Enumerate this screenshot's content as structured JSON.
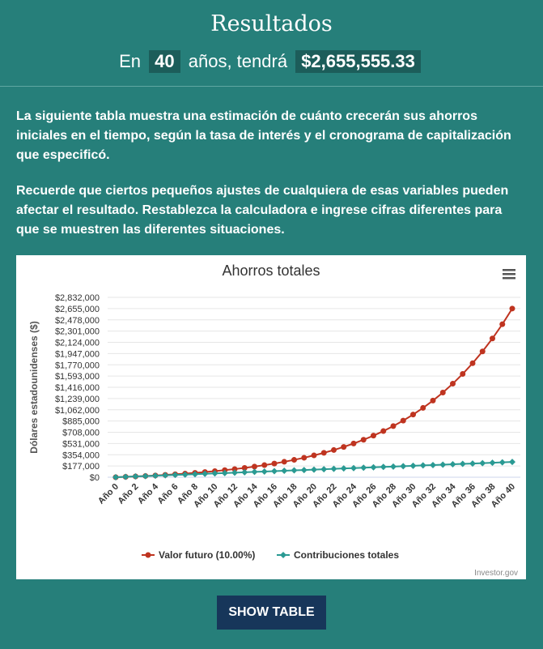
{
  "header": {
    "title": "Resultados",
    "prefix": "En",
    "years": "40",
    "middle": "años, tendrá",
    "amount": "$2,655,555.33"
  },
  "paragraphs": [
    "La siguiente tabla muestra una estimación de cuánto crecerán sus ahorros iniciales en el tiempo, según la tasa de interés y el cronograma de capitalización que especificó.",
    "Recuerde que ciertos pequeños ajustes de cualquiera de esas variables pueden afectar el resultado. Restablezca la calculadora e ingrese cifras diferentes para que se muestren las diferentes situaciones."
  ],
  "chart_data": {
    "type": "line",
    "title": "Ahorros totales",
    "y_label": "Dólares estadounidenses ($)",
    "credit": "Investor.gov",
    "grid": true,
    "categories": [
      "Año 0",
      null,
      "Año 2",
      null,
      "Año 4",
      null,
      "Año 6",
      null,
      "Año 8",
      null,
      "Año 10",
      null,
      "Año 12",
      null,
      "Año 14",
      null,
      "Año 16",
      null,
      "Año 18",
      null,
      "Año 20",
      null,
      "Año 22",
      null,
      "Año 24",
      null,
      "Año 26",
      null,
      "Año 28",
      null,
      "Año 30",
      null,
      "Año 32",
      null,
      "Año 34",
      null,
      "Año 36",
      null,
      "Año 38",
      null,
      "Año 40"
    ],
    "ylim": [
      0,
      2832000
    ],
    "yticks": [
      {
        "value": 0,
        "label": "$0"
      },
      {
        "value": 177000,
        "label": "$177,000"
      },
      {
        "value": 354000,
        "label": "$354,000"
      },
      {
        "value": 531000,
        "label": "$531,000"
      },
      {
        "value": 708000,
        "label": "$708,000"
      },
      {
        "value": 885000,
        "label": "$885,000"
      },
      {
        "value": 1062000,
        "label": "$1,062,000"
      },
      {
        "value": 1239000,
        "label": "$1,239,000"
      },
      {
        "value": 1416000,
        "label": "$1,416,000"
      },
      {
        "value": 1593000,
        "label": "$1,593,000"
      },
      {
        "value": 1770000,
        "label": "$1,770,000"
      },
      {
        "value": 1947000,
        "label": "$1,947,000"
      },
      {
        "value": 2124000,
        "label": "$2,124,000"
      },
      {
        "value": 2301000,
        "label": "$2,301,000"
      },
      {
        "value": 2478000,
        "label": "$2,478,000"
      },
      {
        "value": 2655000,
        "label": "$2,655,000"
      },
      {
        "value": 2832000,
        "label": "$2,832,000"
      }
    ],
    "series": [
      {
        "name": "Valor futuro (10.00%)",
        "color": "#bf3420",
        "marker": "circle",
        "values": [
          0,
          6000,
          12600,
          19860,
          27846,
          36631,
          46294,
          56923,
          68615,
          81477,
          95625,
          111187,
          128306,
          147136,
          167850,
          190635,
          215698,
          243268,
          273595,
          306955,
          343650,
          384015,
          428416,
          477258,
          530984,
          590082,
          655091,
          726600,
          805260,
          891786,
          986964,
          1091661,
          1206827,
          1333509,
          1472860,
          1626146,
          1794761,
          1980237,
          2184261,
          2408687,
          2655555
        ]
      },
      {
        "name": "Contribuciones totales",
        "color": "#2a9a93",
        "marker": "diamond",
        "values": [
          0,
          6000,
          12000,
          18000,
          24000,
          30000,
          36000,
          42000,
          48000,
          54000,
          60000,
          66000,
          72000,
          78000,
          84000,
          90000,
          96000,
          102000,
          108000,
          114000,
          120000,
          126000,
          132000,
          138000,
          144000,
          150000,
          156000,
          162000,
          168000,
          174000,
          180000,
          186000,
          192000,
          198000,
          204000,
          210000,
          216000,
          222000,
          228000,
          234000,
          240000
        ]
      }
    ]
  },
  "button": "SHOW TABLE"
}
